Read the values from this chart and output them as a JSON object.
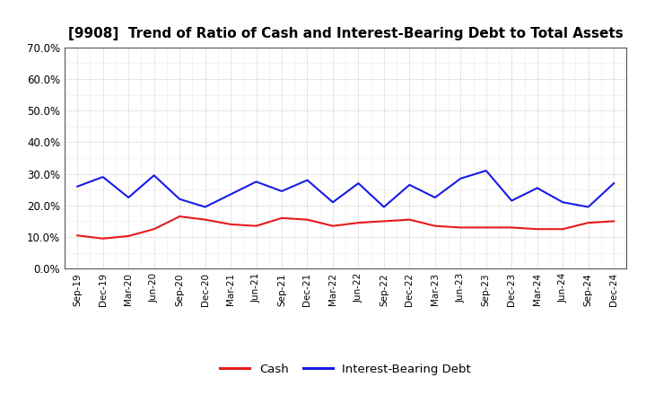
{
  "title": "[9908]  Trend of Ratio of Cash and Interest-Bearing Debt to Total Assets",
  "x_labels": [
    "Sep-19",
    "Dec-19",
    "Mar-20",
    "Jun-20",
    "Sep-20",
    "Dec-20",
    "Mar-21",
    "Jun-21",
    "Sep-21",
    "Dec-21",
    "Mar-22",
    "Jun-22",
    "Sep-22",
    "Dec-22",
    "Mar-23",
    "Jun-23",
    "Sep-23",
    "Dec-23",
    "Mar-24",
    "Jun-24",
    "Sep-24",
    "Dec-24"
  ],
  "cash": [
    10.5,
    9.5,
    10.3,
    12.5,
    16.5,
    15.5,
    14.0,
    13.5,
    16.0,
    15.5,
    13.5,
    14.5,
    15.0,
    15.5,
    13.5,
    13.0,
    13.0,
    13.0,
    12.5,
    12.5,
    14.5,
    15.0
  ],
  "ibd": [
    26.0,
    29.0,
    22.5,
    29.5,
    22.0,
    19.5,
    23.5,
    27.5,
    24.5,
    28.0,
    21.0,
    27.0,
    19.5,
    26.5,
    22.5,
    28.5,
    31.0,
    21.5,
    25.5,
    21.0,
    19.5,
    27.0
  ],
  "cash_color": "#e81a1a",
  "ibd_color": "#1a1ae8",
  "ylim": [
    0,
    70
  ],
  "yticks": [
    0,
    10,
    20,
    30,
    40,
    50,
    60,
    70
  ],
  "ytick_labels": [
    "0.0%",
    "10.0%",
    "20.0%",
    "30.0%",
    "40.0%",
    "50.0%",
    "60.0%",
    "70.0%"
  ],
  "background_color": "#ffffff",
  "plot_bg_color": "#ffffff",
  "grid_color": "#aaaaaa",
  "legend_cash": "Cash",
  "legend_ibd": "Interest-Bearing Debt",
  "title_fontsize": 11,
  "line_width": 1.5
}
